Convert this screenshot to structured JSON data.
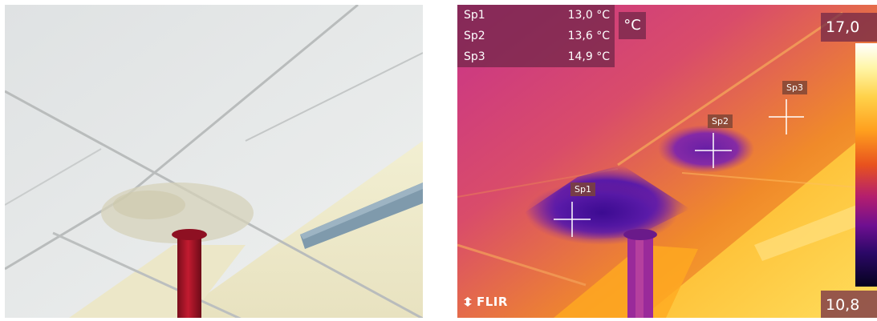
{
  "visible_photo": {
    "description_icon": "ceiling-photo"
  },
  "thermal_image": {
    "measurements": [
      {
        "label": "Sp1",
        "value": "13,0 °C"
      },
      {
        "label": "Sp2",
        "value": "13,6 °C"
      },
      {
        "label": "Sp3",
        "value": "14,9 °C"
      }
    ],
    "unit": "°C",
    "scale": {
      "max": "17,0",
      "min": "10,8"
    },
    "spots": [
      "Sp1",
      "Sp2",
      "Sp3"
    ],
    "logo": "FLIR",
    "palette": [
      "#ffffff",
      "#ffd24a",
      "#ff9f1e",
      "#e8521e",
      "#b41e6e",
      "#6e0f90",
      "#05021e"
    ]
  }
}
